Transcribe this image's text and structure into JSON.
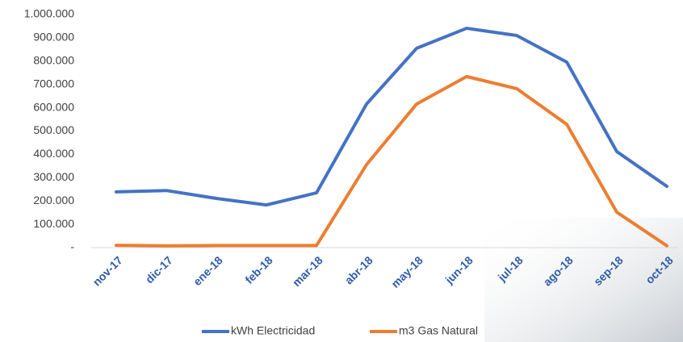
{
  "chart_data": {
    "type": "line",
    "categories": [
      "nov-17",
      "dic-17",
      "ene-18",
      "feb-18",
      "mar-18",
      "abr-18",
      "may-18",
      "jun-18",
      "jul-18",
      "ago-18",
      "sep-18",
      "oct-18"
    ],
    "series": [
      {
        "name": "kWh Electricidad",
        "color": "#4472c4",
        "values": [
          239000,
          245000,
          211000,
          183000,
          235000,
          616000,
          855000,
          941000,
          910000,
          796000,
          412000,
          263000
        ]
      },
      {
        "name": "m3 Gas Natural",
        "color": "#ed7d31",
        "values": [
          10000,
          8000,
          9000,
          9000,
          9000,
          356000,
          616000,
          734000,
          682000,
          529000,
          152000,
          8000
        ]
      }
    ],
    "ylim": [
      0,
      1000000
    ],
    "yticks": [
      {
        "value": 0,
        "label": "-"
      },
      {
        "value": 100000,
        "label": "100.000"
      },
      {
        "value": 200000,
        "label": "200.000"
      },
      {
        "value": 300000,
        "label": "300.000"
      },
      {
        "value": 400000,
        "label": "400.000"
      },
      {
        "value": 500000,
        "label": "500.000"
      },
      {
        "value": 600000,
        "label": "600.000"
      },
      {
        "value": 700000,
        "label": "700.000"
      },
      {
        "value": 800000,
        "label": "800.000"
      },
      {
        "value": 900000,
        "label": "900.000"
      },
      {
        "value": 1000000,
        "label": "1.000.000"
      }
    ],
    "grid": false,
    "legend": "bottom"
  }
}
